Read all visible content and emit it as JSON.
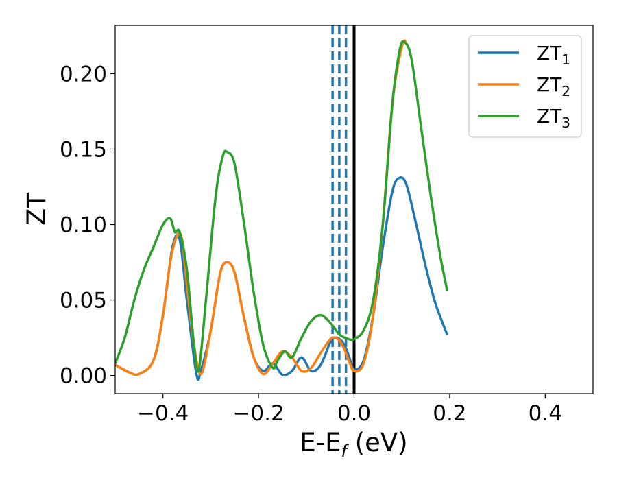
{
  "chart_data": {
    "type": "line",
    "xlabel": "E-E",
    "xlabel_subscript": "f",
    "xlabel_unit": " (eV)",
    "ylabel": "ZT",
    "xlim": [
      -0.5,
      0.5
    ],
    "ylim": [
      -0.012,
      0.232
    ],
    "xticks": [
      -0.4,
      -0.2,
      0.0,
      0.2,
      0.4
    ],
    "xtick_labels": [
      "−0.4",
      "−0.2",
      "0.0",
      "0.2",
      "0.4"
    ],
    "yticks": [
      0.0,
      0.05,
      0.1,
      0.15,
      0.2
    ],
    "ytick_labels": [
      "0.00",
      "0.05",
      "0.10",
      "0.15",
      "0.20"
    ],
    "grid": false,
    "legend_position": "top-right",
    "vlines": [
      {
        "x": 0.0,
        "color": "#000000",
        "style": "solid"
      },
      {
        "x": -0.045,
        "color": "#1f77b4",
        "style": "dashed"
      },
      {
        "x": -0.031,
        "color": "#1f77b4",
        "style": "dashed"
      },
      {
        "x": -0.017,
        "color": "#1f77b4",
        "style": "dashed"
      }
    ],
    "series": [
      {
        "name": "ZT",
        "subscript": "1",
        "color": "#1f77b4",
        "x": [
          -0.5,
          -0.47,
          -0.45,
          -0.42,
          -0.4,
          -0.38,
          -0.365,
          -0.35,
          -0.33,
          -0.32,
          -0.3,
          -0.28,
          -0.265,
          -0.25,
          -0.23,
          -0.21,
          -0.19,
          -0.17,
          -0.15,
          -0.13,
          -0.11,
          -0.09,
          -0.07,
          -0.05,
          -0.04,
          -0.03,
          -0.02,
          -0.01,
          0.0,
          0.02,
          0.04,
          0.06,
          0.08,
          0.095,
          0.11,
          0.13,
          0.15,
          0.17,
          0.195
        ],
        "y": [
          0.007,
          0.002,
          0.001,
          0.01,
          0.04,
          0.085,
          0.09,
          0.05,
          0.001,
          0.004,
          0.03,
          0.068,
          0.075,
          0.068,
          0.038,
          0.012,
          0.003,
          0.008,
          0.0005,
          0.003,
          0.012,
          0.003,
          0.007,
          0.022,
          0.025,
          0.024,
          0.02,
          0.012,
          0.004,
          0.01,
          0.04,
          0.085,
          0.122,
          0.131,
          0.126,
          0.1,
          0.072,
          0.048,
          0.027
        ]
      },
      {
        "name": "ZT",
        "subscript": "2",
        "color": "#ff7f0e",
        "x": [
          -0.5,
          -0.47,
          -0.45,
          -0.42,
          -0.4,
          -0.385,
          -0.37,
          -0.36,
          -0.35,
          -0.335,
          -0.32,
          -0.3,
          -0.28,
          -0.265,
          -0.25,
          -0.23,
          -0.21,
          -0.19,
          -0.17,
          -0.15,
          -0.13,
          -0.11,
          -0.09,
          -0.07,
          -0.05,
          -0.04,
          -0.03,
          -0.02,
          -0.01,
          0.0,
          0.02,
          0.04,
          0.06,
          0.08,
          0.1,
          0.11
        ],
        "y": [
          0.007,
          0.002,
          0.001,
          0.01,
          0.04,
          0.075,
          0.093,
          0.09,
          0.06,
          0.02,
          0.001,
          0.03,
          0.068,
          0.075,
          0.068,
          0.038,
          0.012,
          0.001,
          0.008,
          0.016,
          0.012,
          0.003,
          0.005,
          0.015,
          0.024,
          0.025,
          0.023,
          0.017,
          0.009,
          0.003,
          0.008,
          0.04,
          0.1,
          0.18,
          0.218,
          0.221
        ]
      },
      {
        "name": "ZT",
        "subscript": "3",
        "color": "#2ca02c",
        "x": [
          -0.5,
          -0.48,
          -0.46,
          -0.44,
          -0.42,
          -0.4,
          -0.385,
          -0.375,
          -0.365,
          -0.35,
          -0.335,
          -0.325,
          -0.31,
          -0.29,
          -0.275,
          -0.265,
          -0.25,
          -0.23,
          -0.21,
          -0.19,
          -0.17,
          -0.16,
          -0.145,
          -0.13,
          -0.11,
          -0.09,
          -0.07,
          -0.05,
          -0.03,
          -0.01,
          0.0,
          0.02,
          0.04,
          0.06,
          0.08,
          0.095,
          0.105,
          0.12,
          0.14,
          0.16,
          0.18,
          0.195
        ],
        "y": [
          0.008,
          0.025,
          0.05,
          0.07,
          0.085,
          0.1,
          0.104,
          0.095,
          0.095,
          0.07,
          0.02,
          0.004,
          0.05,
          0.118,
          0.145,
          0.148,
          0.14,
          0.1,
          0.055,
          0.02,
          0.005,
          0.01,
          0.016,
          0.012,
          0.025,
          0.036,
          0.04,
          0.035,
          0.027,
          0.024,
          0.024,
          0.03,
          0.05,
          0.1,
          0.18,
          0.215,
          0.221,
          0.21,
          0.165,
          0.12,
          0.08,
          0.056
        ]
      }
    ]
  }
}
